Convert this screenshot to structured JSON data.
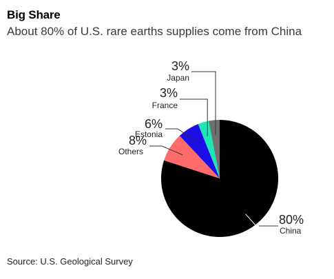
{
  "header": {
    "title": "Big Share",
    "subtitle": "About 80% of U.S. rare earths supplies come from China"
  },
  "footer": {
    "source": "Source: U.S. Geological Survey"
  },
  "chart_data": {
    "type": "pie",
    "title": "Big Share",
    "subtitle": "About 80% of U.S. rare earths supplies come from China",
    "slices": [
      {
        "label": "China",
        "value": 80,
        "value_label": "80%",
        "color": "#000000"
      },
      {
        "label": "Others",
        "value": 8,
        "value_label": "8%",
        "color": "#ff6b6b"
      },
      {
        "label": "Estonia",
        "value": 6,
        "value_label": "6%",
        "color": "#1e0ee6"
      },
      {
        "label": "France",
        "value": 3,
        "value_label": "3%",
        "color": "#1de8b5"
      },
      {
        "label": "Japan",
        "value": 3,
        "value_label": "3%",
        "color": "#707070"
      }
    ],
    "start_angle_deg": 0,
    "direction": "clockwise",
    "source": "Source: U.S. Geological Survey"
  }
}
